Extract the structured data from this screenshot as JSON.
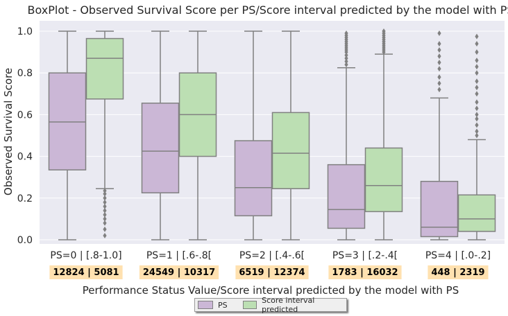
{
  "chart_data": {
    "type": "boxplot",
    "title": "BoxPlot - Observed Survival Score per PS/Score interval predicted by the model with PS",
    "xlabel": "Performance Status Value/Score interval predicted by the model with PS",
    "ylabel": "Observed Survival Score",
    "ylim": [
      -0.02,
      1.05
    ],
    "yticks": [
      "0.0",
      "0.2",
      "0.4",
      "0.6",
      "0.8",
      "1.0"
    ],
    "grid": true,
    "legend_position": "bottom-center",
    "categories": [
      "PS=0 | [.8-1.0]",
      "PS=1 | [.6-.8[",
      "PS=2 | [.4-.6[",
      "PS=3 | [.2-.4[",
      "PS=4 | [.0-.2]"
    ],
    "counts": [
      "12824 | 5081",
      "24549 | 10317",
      "6519 | 12374",
      "1783 | 16032",
      "448 | 2319"
    ],
    "series": [
      {
        "name": "PS",
        "color": "#cbb7d6",
        "boxes": [
          {
            "whislo": 0.0,
            "q1": 0.335,
            "med": 0.565,
            "q3": 0.8,
            "whishi": 1.0,
            "fliers": []
          },
          {
            "whislo": 0.0,
            "q1": 0.225,
            "med": 0.425,
            "q3": 0.655,
            "whishi": 1.0,
            "fliers": []
          },
          {
            "whislo": 0.0,
            "q1": 0.115,
            "med": 0.25,
            "q3": 0.475,
            "whishi": 1.0,
            "fliers": []
          },
          {
            "whislo": 0.0,
            "q1": 0.055,
            "med": 0.145,
            "q3": 0.36,
            "whishi": 0.825,
            "fliers": [
              0.84,
              0.855,
              0.87,
              0.885,
              0.9,
              0.91,
              0.92,
              0.93,
              0.94,
              0.95,
              0.96,
              0.97,
              0.98,
              0.99
            ]
          },
          {
            "whislo": 0.0,
            "q1": 0.015,
            "med": 0.06,
            "q3": 0.28,
            "whishi": 0.68,
            "fliers": [
              0.72,
              0.75,
              0.78,
              0.82,
              0.85,
              0.88,
              0.91,
              0.94,
              0.99
            ]
          }
        ]
      },
      {
        "name": "Score interval predicted",
        "color": "#bcdfb3",
        "boxes": [
          {
            "whislo": 0.245,
            "q1": 0.675,
            "med": 0.87,
            "q3": 0.965,
            "whishi": 1.0,
            "fliers": [
              0.02,
              0.05,
              0.08,
              0.1,
              0.12,
              0.14,
              0.16,
              0.18,
              0.2,
              0.22,
              0.235
            ]
          },
          {
            "whislo": 0.0,
            "q1": 0.4,
            "med": 0.6,
            "q3": 0.8,
            "whishi": 1.0,
            "fliers": []
          },
          {
            "whislo": 0.0,
            "q1": 0.245,
            "med": 0.415,
            "q3": 0.61,
            "whishi": 1.0,
            "fliers": []
          },
          {
            "whislo": 0.0,
            "q1": 0.135,
            "med": 0.26,
            "q3": 0.44,
            "whishi": 0.89,
            "fliers": [
              0.9,
              0.91,
              0.92,
              0.93,
              0.94,
              0.95,
              0.96,
              0.97,
              0.98,
              0.99,
              1.0
            ]
          },
          {
            "whislo": 0.0,
            "q1": 0.04,
            "med": 0.1,
            "q3": 0.215,
            "whishi": 0.48,
            "fliers": [
              0.5,
              0.52,
              0.55,
              0.58,
              0.6,
              0.63,
              0.66,
              0.7,
              0.73,
              0.76,
              0.8,
              0.83,
              0.86,
              0.9,
              0.94,
              0.975
            ]
          }
        ]
      }
    ]
  },
  "style": {
    "plot_bg": "#eaeaf2",
    "grid_color": "#ffffff",
    "line_color": "#808080",
    "count_bg": "#ffe1b0"
  }
}
